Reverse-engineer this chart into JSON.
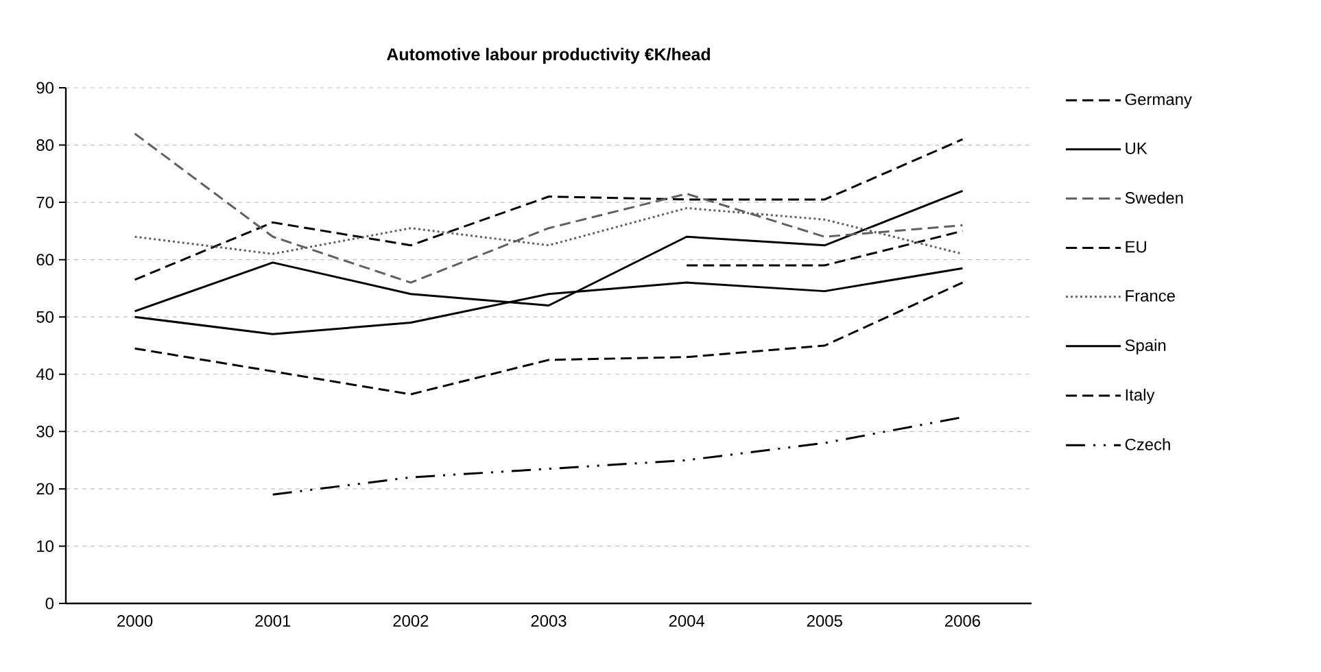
{
  "chart_data": {
    "type": "line",
    "title": "Automotive labour productivity €K/head",
    "categories": [
      "2000",
      "2001",
      "2002",
      "2003",
      "2004",
      "2005",
      "2006"
    ],
    "ylim": [
      0,
      90
    ],
    "yticks": [
      0,
      10,
      20,
      30,
      40,
      50,
      60,
      70,
      80,
      90
    ],
    "grid": "y",
    "legend": "right",
    "marker": "none",
    "series": [
      {
        "name": "Germany",
        "color": "#000000",
        "line_style": "dashed",
        "values": [
          56.5,
          66.5,
          62.5,
          71,
          70.5,
          70.5,
          81
        ]
      },
      {
        "name": "UK",
        "color": "#000000",
        "line_style": "solid",
        "values": [
          51,
          59.5,
          54,
          52,
          64,
          62.5,
          72
        ]
      },
      {
        "name": "Sweden",
        "color": "#606060",
        "line_style": "dashed",
        "values": [
          82,
          64,
          56,
          65.5,
          71.5,
          64,
          66
        ]
      },
      {
        "name": "EU",
        "color": "#000000",
        "line_style": "dashed",
        "values": [
          null,
          null,
          null,
          null,
          59,
          59,
          65
        ]
      },
      {
        "name": "France",
        "color": "#606060",
        "line_style": "dotted",
        "values": [
          64,
          61,
          65.5,
          62.5,
          69,
          67,
          61
        ]
      },
      {
        "name": "Spain",
        "color": "#000000",
        "line_style": "solid",
        "values": [
          50,
          47,
          49,
          54,
          56,
          54.5,
          58.5
        ]
      },
      {
        "name": "Italy",
        "color": "#000000",
        "line_style": "dashed",
        "values": [
          44.5,
          40.5,
          36.5,
          42.5,
          43,
          45,
          56
        ]
      },
      {
        "name": "Czech",
        "color": "#000000",
        "line_style": "dashdot",
        "values": [
          null,
          19,
          22,
          23.5,
          25,
          28,
          32.5
        ]
      }
    ]
  }
}
